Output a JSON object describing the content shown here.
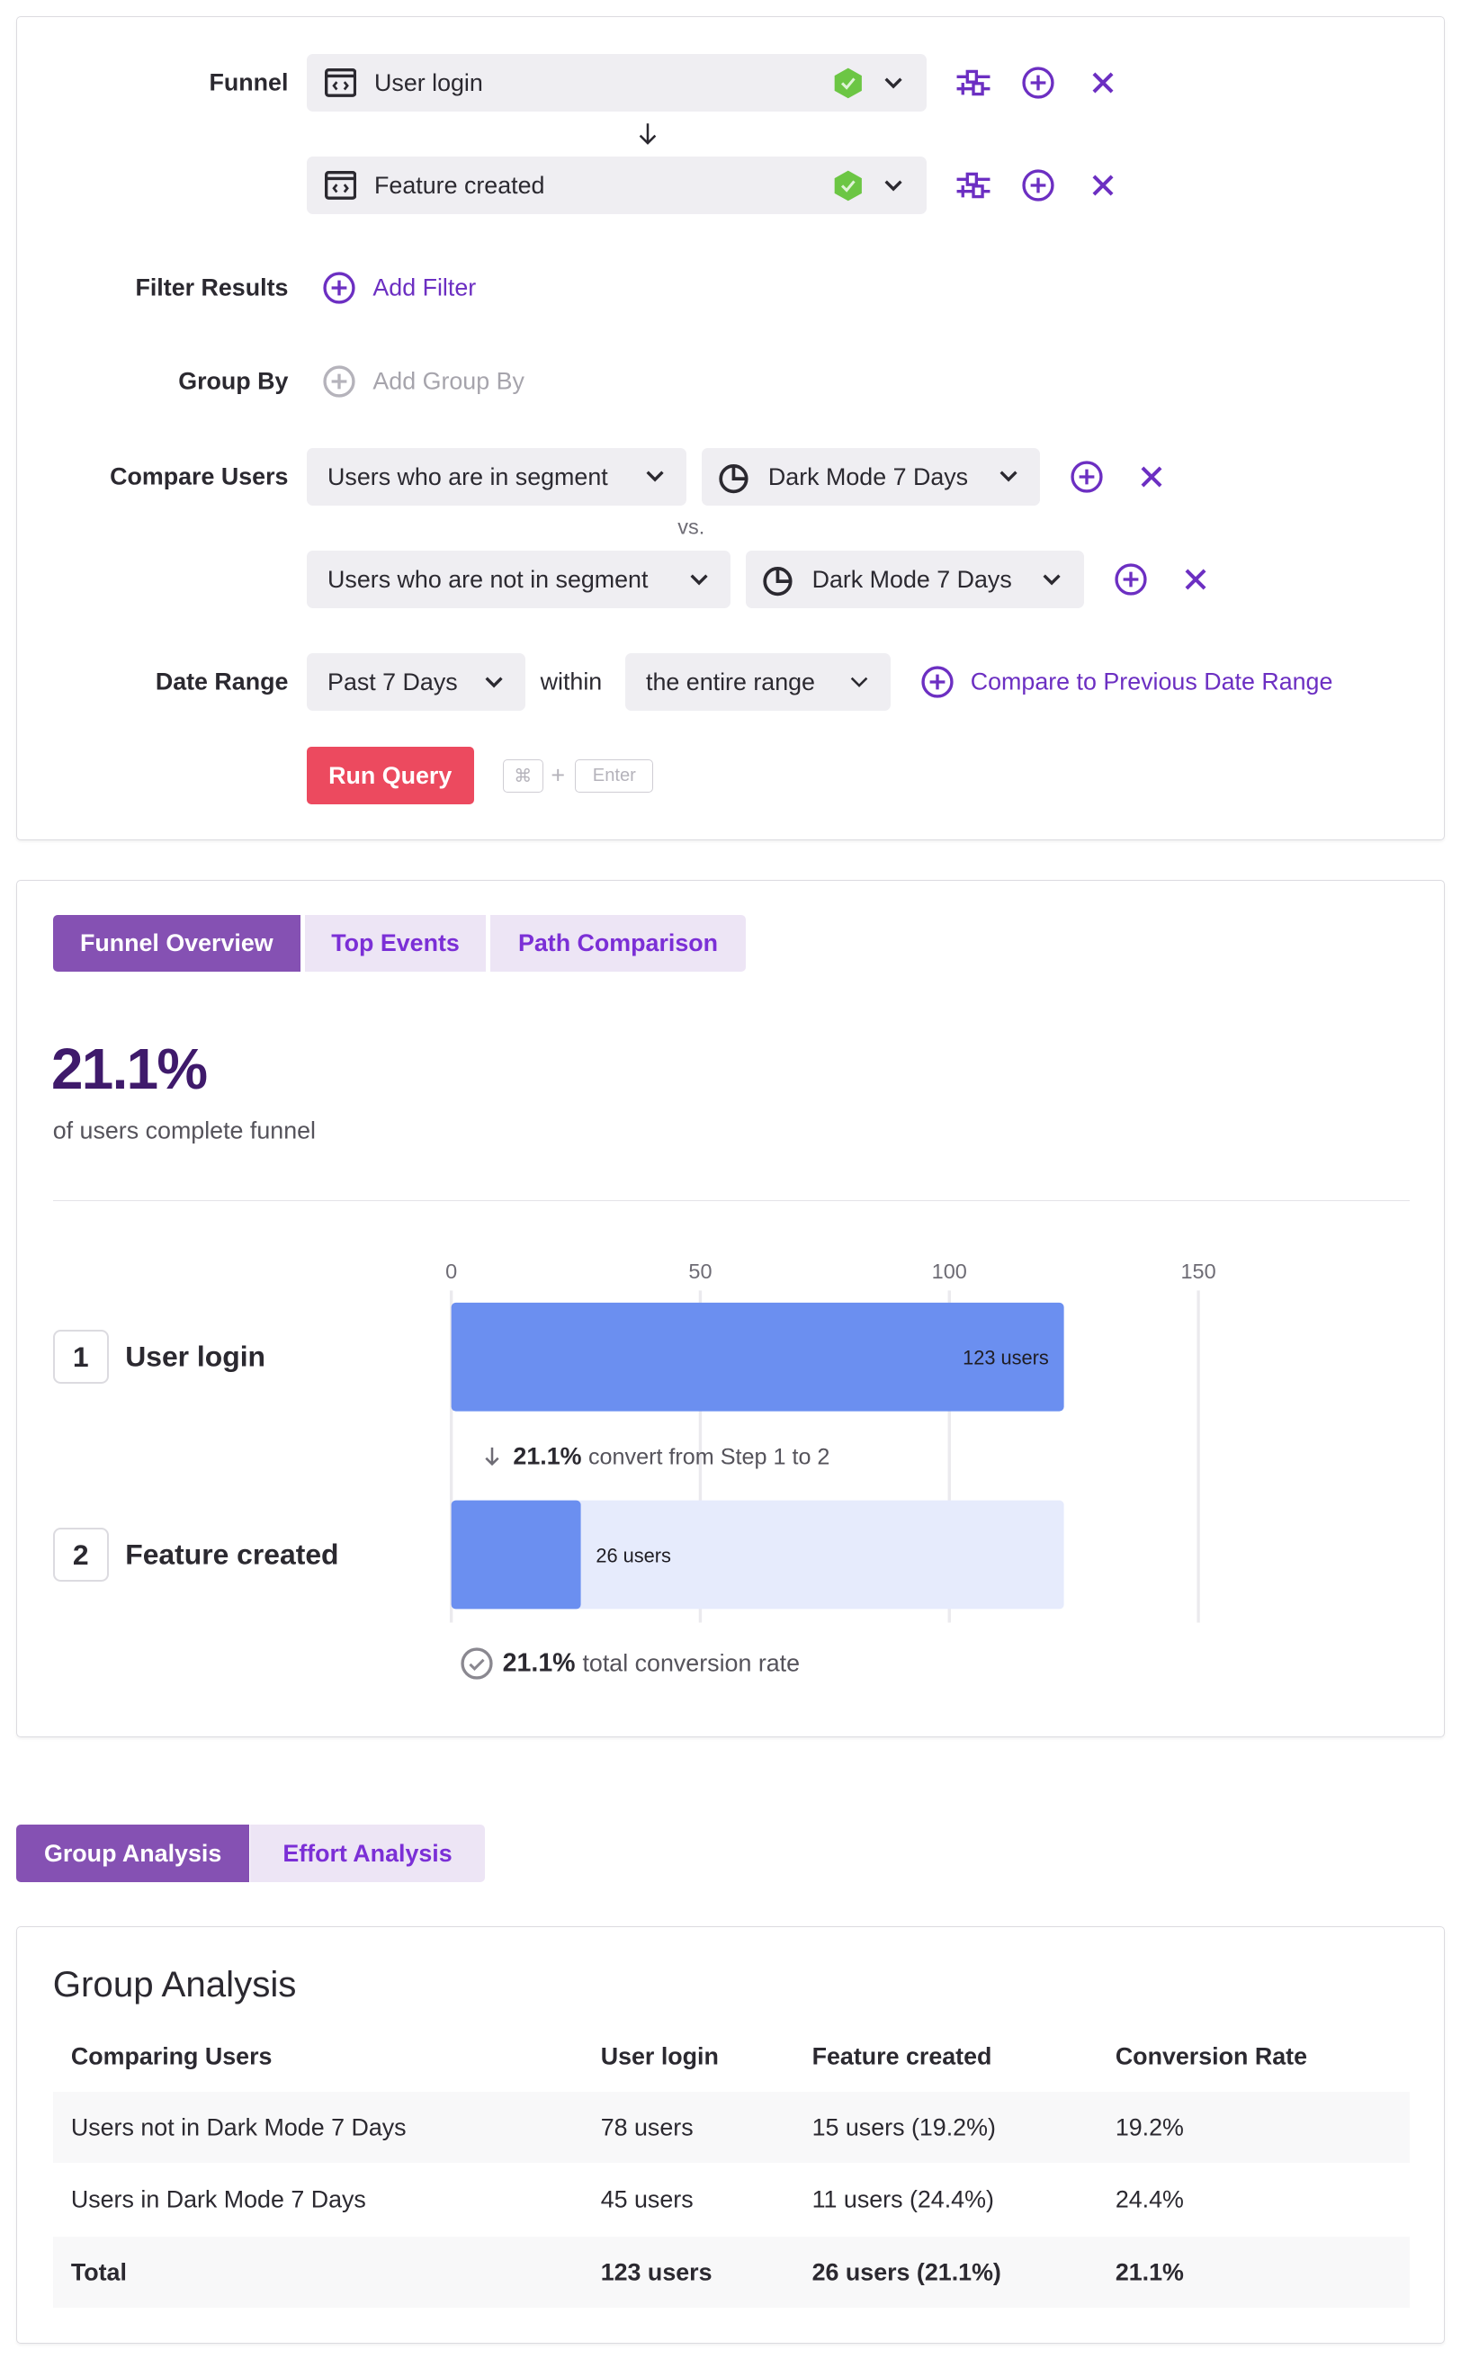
{
  "query": {
    "funnel_label": "Funnel",
    "steps": [
      {
        "name": "User login",
        "icon": "code-window-icon",
        "status": "verified-shield-icon"
      },
      {
        "name": "Feature created",
        "icon": "code-window-icon",
        "status": "verified-shield-icon"
      }
    ],
    "filter_label": "Filter Results",
    "add_filter": "Add Filter",
    "group_by_label": "Group By",
    "add_group_by": "Add Group By",
    "compare_label": "Compare Users",
    "compare_rows": [
      {
        "condition": "Users who are in segment",
        "segment": "Dark Mode 7 Days"
      },
      {
        "condition": "Users who are not in segment",
        "segment": "Dark Mode 7 Days"
      }
    ],
    "vs": "vs.",
    "date_range_label": "Date Range",
    "date_range": "Past 7 Days",
    "within": "within",
    "within_value": "the entire range",
    "compare_previous": "Compare to Previous Date Range",
    "run_query": "Run Query",
    "shortcut_key1": "⌘",
    "shortcut_plus": "+",
    "shortcut_key2": "Enter"
  },
  "overview": {
    "tabs": [
      "Funnel Overview",
      "Top Events",
      "Path Comparison"
    ],
    "active_tab": "Funnel Overview",
    "headline": "21.1%",
    "headline_sub": "of users complete funnel",
    "steps": [
      {
        "num": "1",
        "name": "User login"
      },
      {
        "num": "2",
        "name": "Feature created"
      }
    ],
    "convert_pct": "21.1%",
    "convert_text": "convert from Step 1 to 2",
    "total_pct": "21.1%",
    "total_text": "total conversion rate"
  },
  "chart_data": {
    "type": "bar",
    "orientation": "horizontal",
    "categories": [
      "User login",
      "Feature created"
    ],
    "values": [
      123,
      26
    ],
    "data_labels": [
      "123 users",
      "26 users"
    ],
    "xlim": [
      0,
      150
    ],
    "ticks": [
      "0",
      "50",
      "100",
      "150"
    ],
    "tick_values": [
      0,
      50,
      100,
      150
    ],
    "grid": true,
    "colors": {
      "bar": "#6b8ff0",
      "remainder": "#e6ebfc"
    }
  },
  "analysis": {
    "tabs": [
      "Group Analysis",
      "Effort Analysis"
    ],
    "active_tab": "Group Analysis",
    "title": "Group Analysis",
    "columns": [
      "Comparing Users",
      "User login",
      "Feature created",
      "Conversion Rate"
    ],
    "rows": [
      [
        "Users not in Dark Mode 7 Days",
        "78 users",
        "15 users (19.2%)",
        "19.2%"
      ],
      [
        "Users in Dark Mode 7 Days",
        "45 users",
        "11 users (24.4%)",
        "24.4%"
      ],
      [
        "Total",
        "123 users",
        "26 users (21.1%)",
        "21.1%"
      ]
    ]
  },
  "colors": {
    "accent": "#6c2fc2",
    "tab_active": "#8551b3",
    "run": "#ec4a5f",
    "verified": "#6cc644"
  }
}
